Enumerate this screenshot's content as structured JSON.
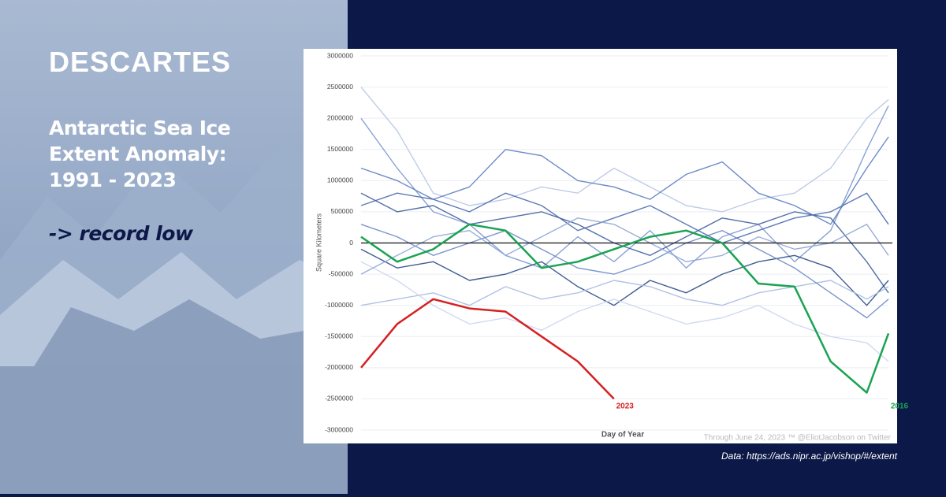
{
  "brand": "DESCARTES",
  "headline": [
    "Antarctic Sea Ice",
    "Extent Anomaly:",
    "1991 - 2023"
  ],
  "tagline": "-> record low",
  "source": "Data: https://ads.nipr.ac.jp/vishop/#/extent",
  "chart_data": {
    "type": "line",
    "y_label": "Square Kilometers",
    "x_label": "Day of Year",
    "credit": "Through June 24, 2023 ™ @EliotJacobson on Twitter",
    "x": [
      1,
      26,
      51,
      76,
      101,
      126,
      151,
      176,
      201,
      226,
      251,
      276,
      301,
      326,
      351,
      366
    ],
    "xlim": [
      1,
      366
    ],
    "ylim": [
      -3000000,
      3000000
    ],
    "yticks": [
      3000000,
      2500000,
      2000000,
      1500000,
      1000000,
      500000,
      0,
      -500000,
      -1000000,
      -1500000,
      -2000000,
      -2500000,
      -3000000
    ],
    "grid": true,
    "series": [
      {
        "color": "#b7c6e6",
        "values": [
          2500000,
          1800000,
          800000,
          600000,
          700000,
          900000,
          800000,
          1200000,
          900000,
          600000,
          500000,
          700000,
          800000,
          1200000,
          2000000,
          2300000
        ]
      },
      {
        "color": "#7d98cf",
        "values": [
          2000000,
          1200000,
          500000,
          300000,
          -200000,
          -400000,
          100000,
          -300000,
          200000,
          -400000,
          100000,
          300000,
          -300000,
          200000,
          1500000,
          2200000
        ]
      },
      {
        "color": "#5d7dbf",
        "values": [
          1200000,
          1000000,
          700000,
          900000,
          1500000,
          1400000,
          1000000,
          900000,
          700000,
          1100000,
          1300000,
          800000,
          600000,
          300000,
          1200000,
          1700000
        ]
      },
      {
        "color": "#3f5f9f",
        "values": [
          800000,
          500000,
          600000,
          300000,
          400000,
          500000,
          300000,
          0,
          -200000,
          100000,
          400000,
          300000,
          500000,
          400000,
          -300000,
          -800000
        ]
      },
      {
        "color": "#2b4a86",
        "values": [
          -100000,
          -400000,
          -300000,
          -600000,
          -500000,
          -300000,
          -700000,
          -1000000,
          -600000,
          -800000,
          -500000,
          -300000,
          -200000,
          -400000,
          -1000000,
          -600000
        ]
      },
      {
        "color": "#a9bbe1",
        "values": [
          -1000000,
          -900000,
          -800000,
          -1000000,
          -700000,
          -900000,
          -800000,
          -600000,
          -700000,
          -900000,
          -1000000,
          -800000,
          -700000,
          -600000,
          -900000,
          -700000
        ]
      },
      {
        "color": "#6b8ac7",
        "values": [
          300000,
          100000,
          -200000,
          0,
          200000,
          -100000,
          -400000,
          -500000,
          -300000,
          0,
          200000,
          -100000,
          -400000,
          -800000,
          -1200000,
          -900000
        ]
      },
      {
        "color": "#cbd6ee",
        "values": [
          -300000,
          -600000,
          -1000000,
          -1300000,
          -1200000,
          -1400000,
          -1100000,
          -900000,
          -1100000,
          -1300000,
          -1200000,
          -1000000,
          -1300000,
          -1500000,
          -1600000,
          -1900000
        ]
      },
      {
        "color": "#4c6cae",
        "values": [
          600000,
          800000,
          700000,
          500000,
          800000,
          600000,
          200000,
          400000,
          600000,
          300000,
          0,
          200000,
          400000,
          500000,
          800000,
          300000
        ]
      },
      {
        "color": "#8ea6d6",
        "values": [
          -500000,
          -200000,
          100000,
          200000,
          -200000,
          100000,
          400000,
          300000,
          0,
          -300000,
          -200000,
          100000,
          -100000,
          0,
          300000,
          -200000
        ]
      },
      {
        "name": "2016",
        "color": "#1aa352",
        "values": [
          100000,
          -300000,
          -100000,
          300000,
          200000,
          -400000,
          -300000,
          -100000,
          100000,
          200000,
          0,
          -650000,
          -700000,
          -1900000,
          -2400000,
          -1450000
        ]
      },
      {
        "name": "2023",
        "color": "#d62020",
        "values": [
          -2000000,
          -1300000,
          -900000,
          -1050000,
          -1100000,
          -1500000,
          -1900000,
          -2500000,
          null,
          null,
          null,
          null,
          null,
          null,
          null,
          null
        ]
      }
    ]
  }
}
